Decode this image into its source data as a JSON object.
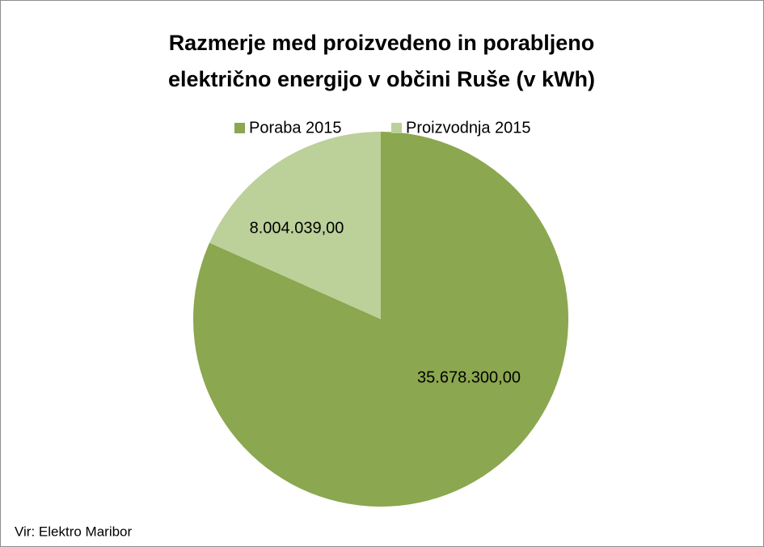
{
  "chart_data": {
    "type": "pie",
    "title": [
      "Razmerje med proizvedeno in porabljeno",
      "električno energijo v občini Ruše (v kWh)"
    ],
    "categories": [
      "Poraba 2015",
      "Proizvodnja 2015"
    ],
    "values": [
      35678300,
      8004039
    ],
    "value_labels": [
      "35.678.300,00",
      "8.004.039,00"
    ],
    "colors": [
      "#8ba74f",
      "#bcd09a"
    ],
    "legend": "top",
    "source": "Vir: Elektro Maribor"
  }
}
